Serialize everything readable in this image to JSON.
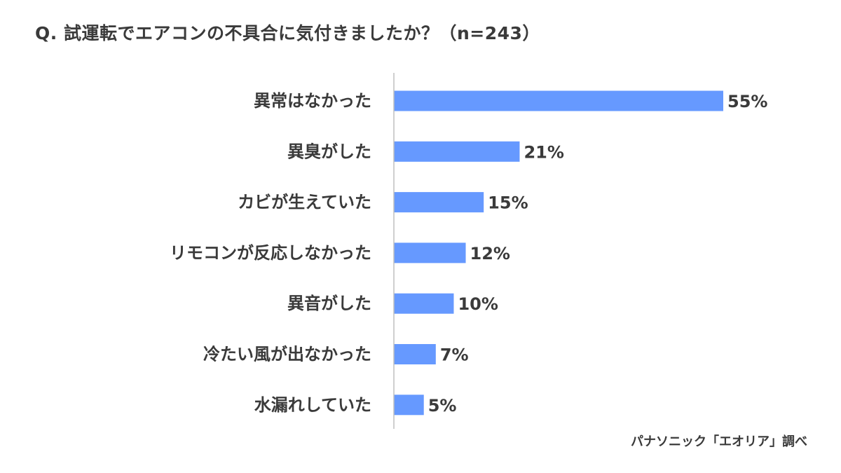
{
  "title": "Q. 試運転でエアコンの不具合に気付きましたか？（n=243）",
  "source": "パナソニック「エオリア」調べ",
  "chart_data": {
    "type": "bar",
    "orientation": "horizontal",
    "title": "Q. 試運転でエアコンの不具合に気付きましたか？（n=243）",
    "categories": [
      "異常はなかった",
      "異臭がした",
      "カビが生えていた",
      "リモコンが反応しなかった",
      "異音がした",
      "冷たい風が出なかった",
      "水漏れしていた"
    ],
    "values": [
      55,
      21,
      15,
      12,
      10,
      7,
      5
    ],
    "value_labels": [
      "55%",
      "21%",
      "15%",
      "12%",
      "10%",
      "7%",
      "5%"
    ],
    "unit": "%",
    "xlim": [
      0,
      55
    ],
    "grid": false,
    "legend": "none",
    "bar_color": "#6699FF",
    "axis_color": "#BFBFBF"
  }
}
